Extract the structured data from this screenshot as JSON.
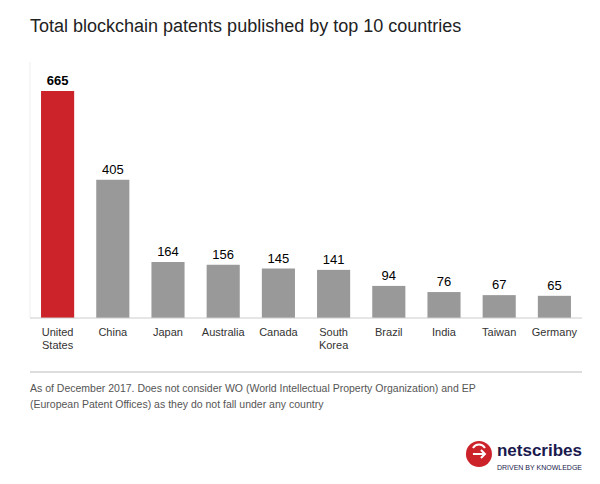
{
  "chart_data": {
    "type": "bar",
    "title": "Total blockchain patents published by top 10 countries",
    "categories": [
      "United States",
      "China",
      "Japan",
      "Australia",
      "Canada",
      "South Korea",
      "Brazil",
      "India",
      "Taiwan",
      "Germany"
    ],
    "values": [
      665,
      405,
      164,
      156,
      145,
      141,
      94,
      76,
      67,
      65
    ],
    "colors": [
      "#cc2229",
      "#999999",
      "#999999",
      "#999999",
      "#999999",
      "#999999",
      "#999999",
      "#999999",
      "#999999",
      "#999999"
    ],
    "ylim": [
      0,
      750
    ],
    "data_labels": true,
    "tick_labels": "x",
    "grid": false,
    "annotations": [
      "As of December 2017. Does not consider WO (World Intellectual Property Organization) and EP",
      "(European Patent Offices) as they do not fall under any country",
      "netscribes",
      "DRIVEN BY KNOWLEDGE"
    ]
  }
}
